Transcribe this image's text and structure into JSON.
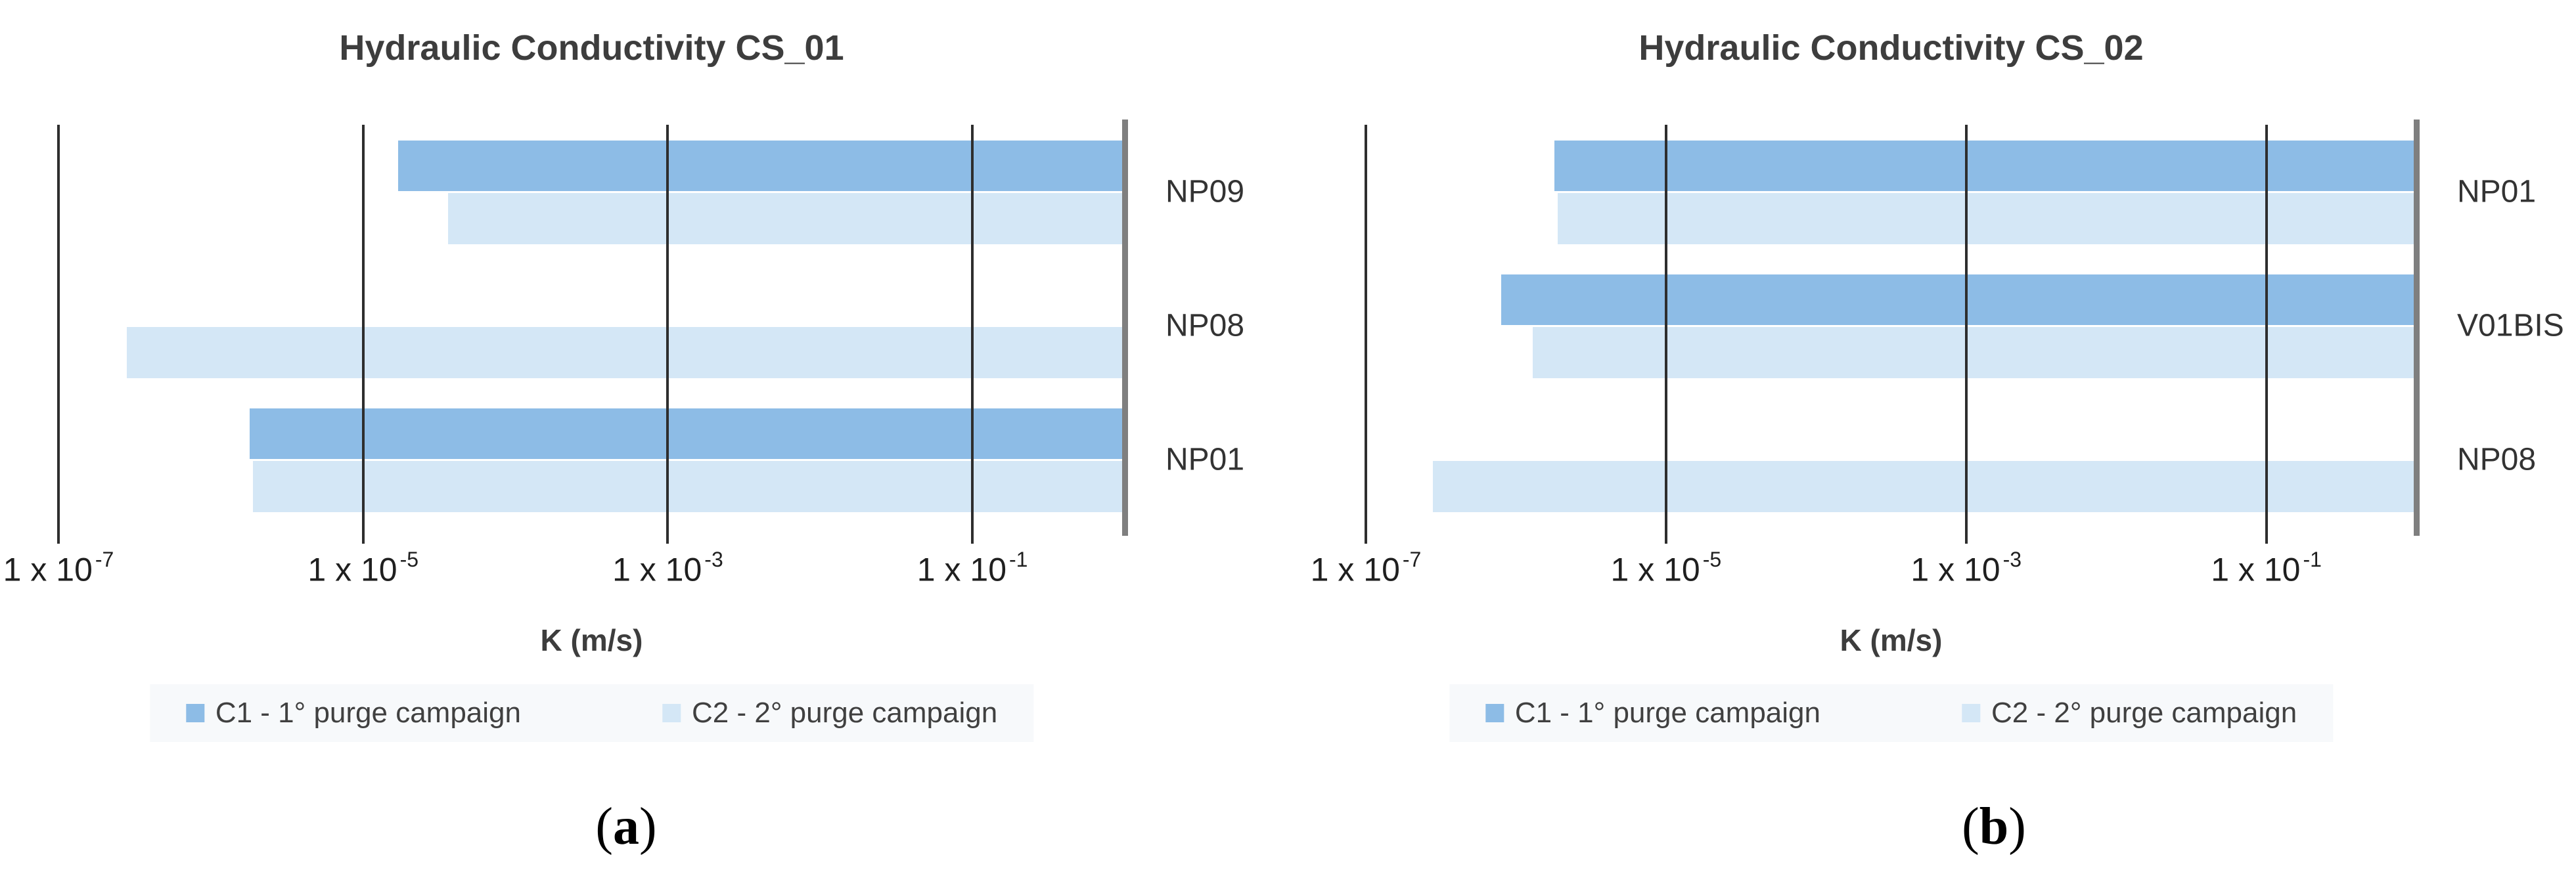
{
  "colors": {
    "series_c1": "#8dbce6",
    "series_c2": "#d4e7f6",
    "gridline": "#2e2e2e",
    "axis_edge_line": "#7f7f7f",
    "title_text": "#3d3d3d",
    "tick_text": "#1f1f1f",
    "legend_text": "#404040",
    "legend_background": "#f7f9fb"
  },
  "captions": [
    {
      "prefix": "(",
      "letter": "a",
      "suffix": ")"
    },
    {
      "prefix": "(",
      "letter": "b",
      "suffix": ")"
    }
  ],
  "chart_data": [
    {
      "type": "bar",
      "orientation": "horizontal",
      "title": "Hydraulic Conductivity CS_01",
      "xlabel": "K (m/s)",
      "x_scale": "log",
      "x_min": 1e-07,
      "x_max": 1,
      "bars_extend_to_axis_max": true,
      "grid": true,
      "legend_position": "bottom",
      "x_ticks": [
        {
          "value": 1e-07,
          "base": "1 x 10",
          "exp": "-7"
        },
        {
          "value": 1e-05,
          "base": "1 x 10",
          "exp": "-5"
        },
        {
          "value": 0.001,
          "base": "1 x 10",
          "exp": "-3"
        },
        {
          "value": 0.1,
          "base": "1 x 10",
          "exp": "-1"
        }
      ],
      "categories": [
        "NP09",
        "NP08",
        "NP01"
      ],
      "series": [
        {
          "name": "C1 - 1° purge campaign",
          "color": "#8dbce6",
          "values": [
            1.7e-05,
            null,
            1.8e-06
          ]
        },
        {
          "name": "C2 - 2° purge campaign",
          "color": "#d4e7f6",
          "values": [
            3.6e-05,
            2.8e-07,
            1.9e-06
          ]
        }
      ]
    },
    {
      "type": "bar",
      "orientation": "horizontal",
      "title": "Hydraulic Conductivity CS_02",
      "xlabel": "K (m/s)",
      "x_scale": "log",
      "x_min": 1e-07,
      "x_max": 1,
      "bars_extend_to_axis_max": true,
      "grid": true,
      "legend_position": "bottom",
      "x_ticks": [
        {
          "value": 1e-07,
          "base": "1 x 10",
          "exp": "-7"
        },
        {
          "value": 1e-05,
          "base": "1 x 10",
          "exp": "-5"
        },
        {
          "value": 0.001,
          "base": "1 x 10",
          "exp": "-3"
        },
        {
          "value": 0.1,
          "base": "1 x 10",
          "exp": "-1"
        }
      ],
      "categories": [
        "NP01",
        "V01BIS",
        "NP08"
      ],
      "series": [
        {
          "name": "C1 - 1° purge campaign",
          "color": "#8dbce6",
          "values": [
            1.8e-06,
            8e-07,
            null
          ]
        },
        {
          "name": "C2 - 2° purge campaign",
          "color": "#d4e7f6",
          "values": [
            1.9e-06,
            1.3e-06,
            2.8e-07
          ]
        }
      ]
    }
  ]
}
